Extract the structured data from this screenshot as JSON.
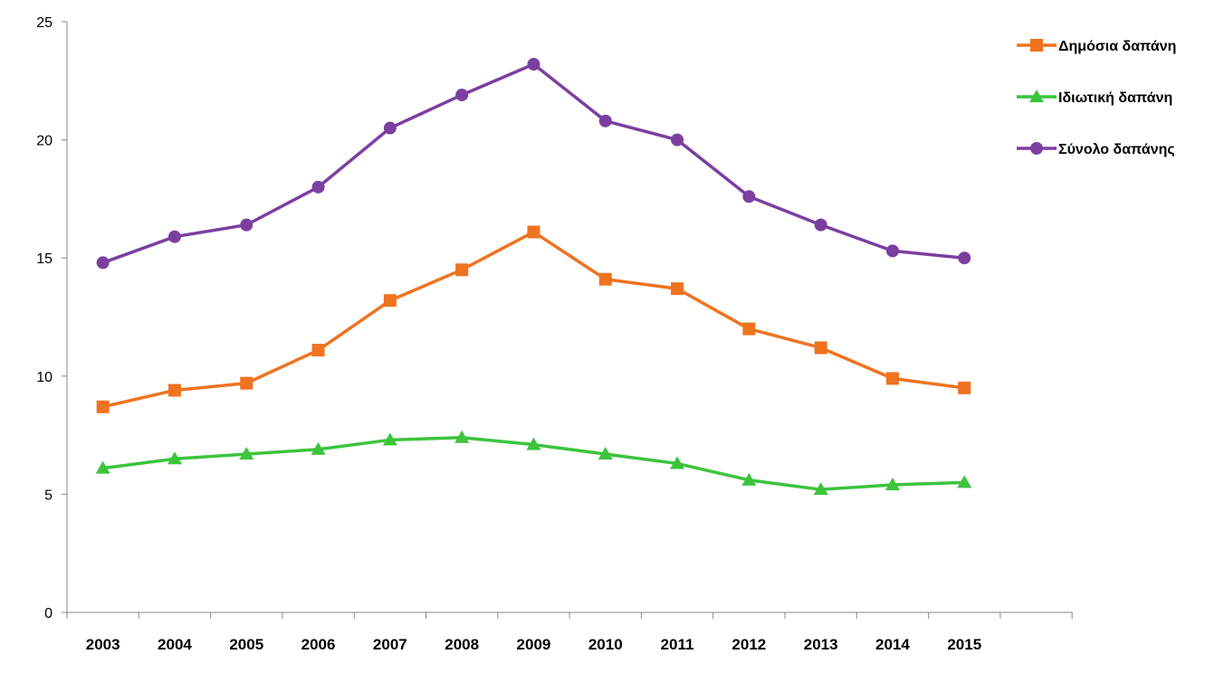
{
  "chart_data": {
    "type": "line",
    "title": "",
    "xlabel": "",
    "ylabel": "",
    "categories": [
      "2003",
      "2004",
      "2005",
      "2006",
      "2007",
      "2008",
      "2009",
      "2010",
      "2011",
      "2012",
      "2013",
      "2014",
      "2015"
    ],
    "ylim": [
      0,
      25
    ],
    "yticks": [
      "0",
      "5",
      "10",
      "15",
      "20",
      "25"
    ],
    "grid": false,
    "legend_position": "top-right",
    "series": [
      {
        "name": "Δημόσια δαπάνη",
        "color": "#F07320",
        "marker": "square",
        "values": [
          8.7,
          9.4,
          9.7,
          11.1,
          13.2,
          14.5,
          16.1,
          14.1,
          13.7,
          12.0,
          11.2,
          9.9,
          9.5
        ]
      },
      {
        "name": "Ιδιωτική δαπάνη",
        "color": "#3CC43C",
        "marker": "triangle",
        "values": [
          6.1,
          6.5,
          6.7,
          6.9,
          7.3,
          7.4,
          7.1,
          6.7,
          6.3,
          5.6,
          5.2,
          5.4,
          5.5
        ]
      },
      {
        "name": "Σύνολο δαπάνης",
        "color": "#7B3FA0",
        "marker": "circle",
        "values": [
          14.8,
          15.9,
          16.4,
          18.0,
          20.5,
          21.9,
          23.2,
          20.8,
          20.0,
          17.6,
          16.4,
          15.3,
          15.0
        ]
      }
    ]
  }
}
